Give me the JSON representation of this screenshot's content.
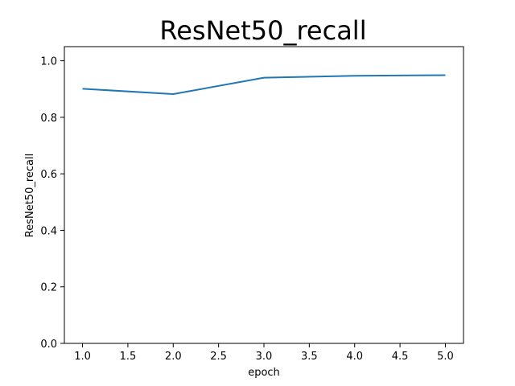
{
  "chart_data": {
    "type": "line",
    "title": "ResNet50_recall",
    "xlabel": "epoch",
    "ylabel": "ResNet50_recall",
    "x": [
      1.0,
      2.0,
      3.0,
      4.0,
      5.0
    ],
    "series": [
      {
        "values": [
          0.901,
          0.882,
          0.94,
          0.947,
          0.949
        ]
      }
    ],
    "xlim": [
      0.8,
      5.2
    ],
    "ylim": [
      0.0,
      1.05
    ],
    "xticks": [
      1.0,
      1.5,
      2.0,
      2.5,
      3.0,
      3.5,
      4.0,
      4.5,
      5.0
    ],
    "xtick_labels": [
      "1.0",
      "1.5",
      "2.0",
      "2.5",
      "3.0",
      "3.5",
      "4.0",
      "4.5",
      "5.0"
    ],
    "yticks": [
      0.0,
      0.2,
      0.4,
      0.6,
      0.8,
      1.0
    ],
    "ytick_labels": [
      "0.0",
      "0.2",
      "0.4",
      "0.6",
      "0.8",
      "1.0"
    ],
    "grid": false,
    "legend": false,
    "line_color": "#1f77b4"
  }
}
